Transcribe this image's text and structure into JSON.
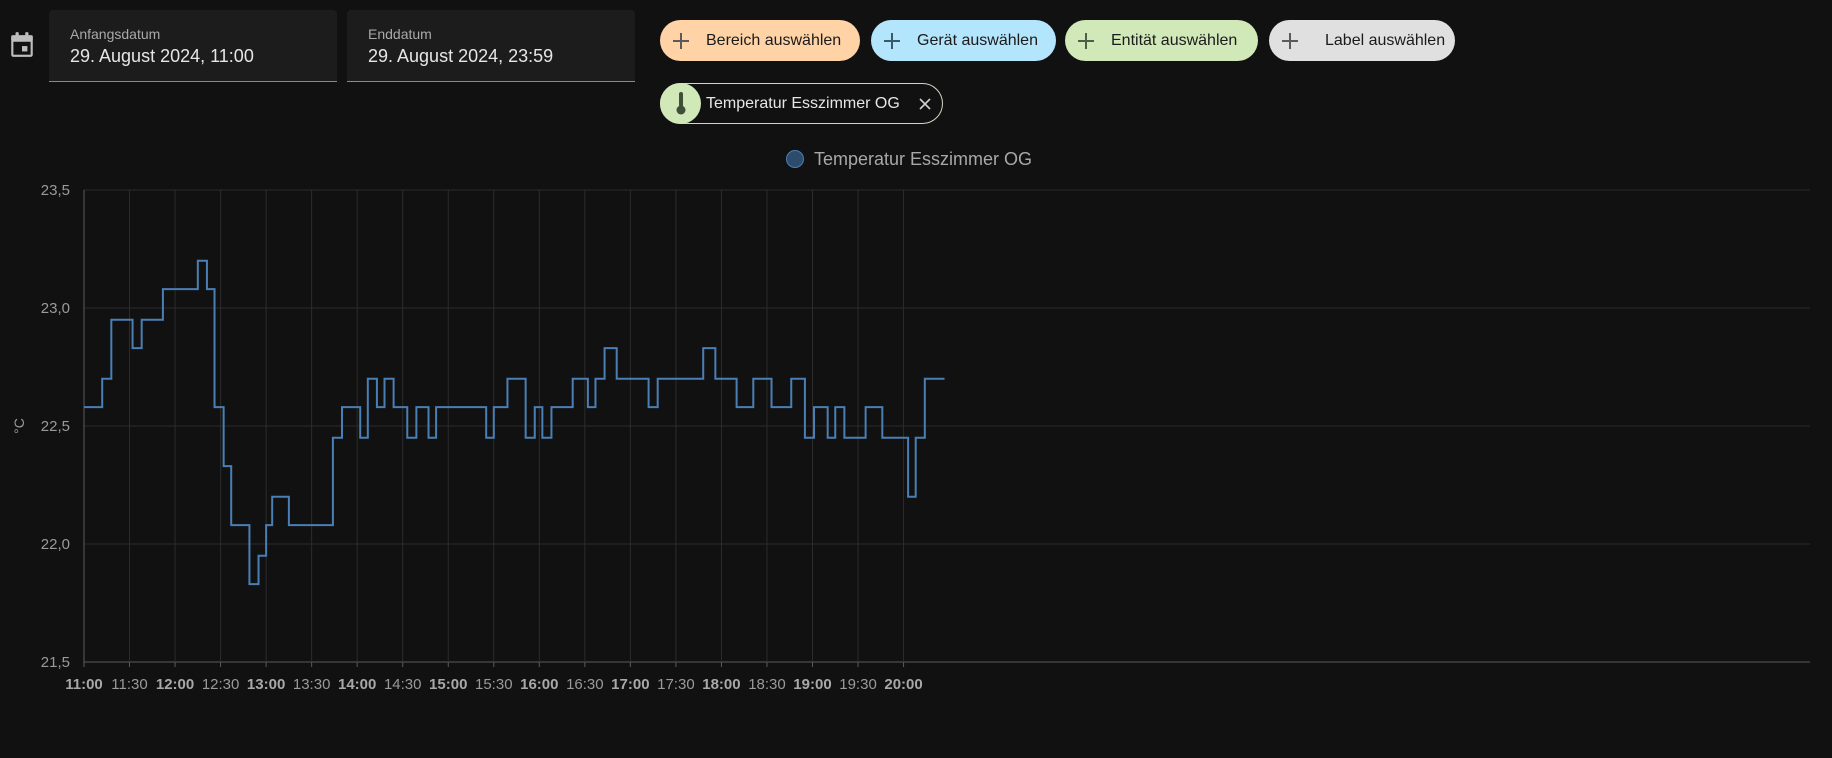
{
  "date_range": {
    "start_label": "Anfangsdatum",
    "start_value": "29. August 2024, 11:00",
    "end_label": "Enddatum",
    "end_value": "29. August 2024, 23:59"
  },
  "pickers": {
    "area": "Bereich auswählen",
    "device": "Gerät auswählen",
    "entity": "Entität auswählen",
    "label": "Label auswählen"
  },
  "selected_entity": {
    "name": "Temperatur Esszimmer OG",
    "icon": "thermometer-icon"
  },
  "colors": {
    "area": "#ffd3a6",
    "device": "#b3e5fc",
    "entity": "#d1e8b9",
    "label": "#e0e0e0",
    "series": "#4a7fb5",
    "background": "#111111"
  },
  "chart_data": {
    "type": "line",
    "step": true,
    "ylabel": "°C",
    "ylim": [
      21.5,
      23.5
    ],
    "y_ticks": [
      "21,5",
      "22,0",
      "22,5",
      "23,0",
      "23,5"
    ],
    "x_ticks": [
      {
        "label": "11:00",
        "major": true
      },
      {
        "label": "11:30",
        "major": false
      },
      {
        "label": "12:00",
        "major": true
      },
      {
        "label": "12:30",
        "major": false
      },
      {
        "label": "13:00",
        "major": true
      },
      {
        "label": "13:30",
        "major": false
      },
      {
        "label": "14:00",
        "major": true
      },
      {
        "label": "14:30",
        "major": false
      },
      {
        "label": "15:00",
        "major": true
      },
      {
        "label": "15:30",
        "major": false
      },
      {
        "label": "16:00",
        "major": true
      },
      {
        "label": "16:30",
        "major": false
      },
      {
        "label": "17:00",
        "major": true
      },
      {
        "label": "17:30",
        "major": false
      },
      {
        "label": "18:00",
        "major": true
      },
      {
        "label": "18:30",
        "major": false
      },
      {
        "label": "19:00",
        "major": true
      },
      {
        "label": "19:30",
        "major": false
      },
      {
        "label": "20:00",
        "major": true
      }
    ],
    "xlim": [
      "11:00",
      "20:27"
    ],
    "legend": "top",
    "grid": true,
    "series": [
      {
        "name": "Temperatur Esszimmer OG",
        "points": [
          [
            "11:00",
            22.58
          ],
          [
            "11:12",
            22.7
          ],
          [
            "11:18",
            22.95
          ],
          [
            "11:32",
            22.83
          ],
          [
            "11:38",
            22.95
          ],
          [
            "11:52",
            23.08
          ],
          [
            "12:15",
            23.2
          ],
          [
            "12:21",
            23.08
          ],
          [
            "12:26",
            22.58
          ],
          [
            "12:32",
            22.33
          ],
          [
            "12:37",
            22.08
          ],
          [
            "12:49",
            21.83
          ],
          [
            "12:55",
            21.95
          ],
          [
            "13:00",
            22.08
          ],
          [
            "13:04",
            22.2
          ],
          [
            "13:15",
            22.08
          ],
          [
            "13:44",
            22.45
          ],
          [
            "13:50",
            22.58
          ],
          [
            "14:02",
            22.45
          ],
          [
            "14:07",
            22.7
          ],
          [
            "14:13",
            22.58
          ],
          [
            "14:18",
            22.7
          ],
          [
            "14:24",
            22.58
          ],
          [
            "14:33",
            22.45
          ],
          [
            "14:39",
            22.58
          ],
          [
            "14:47",
            22.45
          ],
          [
            "14:52",
            22.58
          ],
          [
            "15:25",
            22.45
          ],
          [
            "15:30",
            22.58
          ],
          [
            "15:39",
            22.7
          ],
          [
            "15:51",
            22.45
          ],
          [
            "15:57",
            22.58
          ],
          [
            "16:02",
            22.45
          ],
          [
            "16:08",
            22.58
          ],
          [
            "16:22",
            22.7
          ],
          [
            "16:32",
            22.58
          ],
          [
            "16:37",
            22.7
          ],
          [
            "16:43",
            22.83
          ],
          [
            "16:51",
            22.7
          ],
          [
            "17:12",
            22.58
          ],
          [
            "17:18",
            22.7
          ],
          [
            "17:48",
            22.83
          ],
          [
            "17:56",
            22.7
          ],
          [
            "18:10",
            22.58
          ],
          [
            "18:21",
            22.7
          ],
          [
            "18:33",
            22.58
          ],
          [
            "18:46",
            22.7
          ],
          [
            "18:55",
            22.45
          ],
          [
            "19:01",
            22.58
          ],
          [
            "19:10",
            22.45
          ],
          [
            "19:15",
            22.58
          ],
          [
            "19:21",
            22.45
          ],
          [
            "19:35",
            22.58
          ],
          [
            "19:46",
            22.45
          ],
          [
            "20:03",
            22.2
          ],
          [
            "20:08",
            22.45
          ],
          [
            "20:14",
            22.7
          ],
          [
            "20:27",
            22.7
          ]
        ]
      }
    ]
  }
}
